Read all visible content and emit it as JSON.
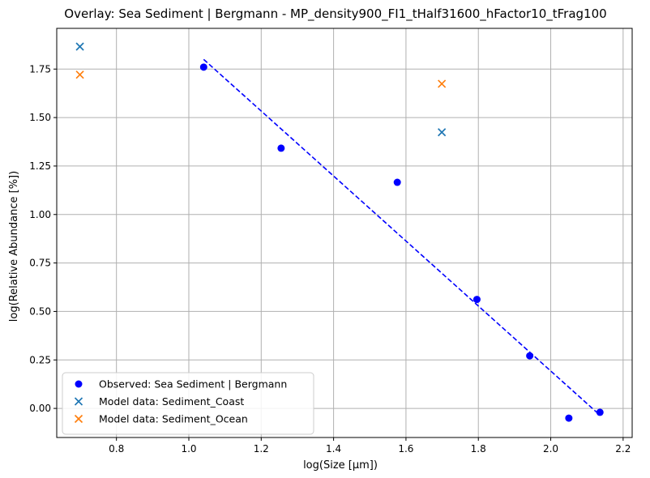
{
  "chart_data": {
    "type": "scatter",
    "title": "Overlay: Sea Sediment | Bergmann - MP_density900_FI1_tHalf31600_hFactor10_tFrag100",
    "xlabel": "log(Size [µm])",
    "ylabel": "log(Relative Abundance [%])",
    "xlim": [
      0.635,
      2.225
    ],
    "ylim": [
      -0.15,
      1.96
    ],
    "xticks": [
      0.8,
      1.0,
      1.2,
      1.4,
      1.6,
      1.8,
      2.0,
      2.2
    ],
    "yticks": [
      0.0,
      0.25,
      0.5,
      0.75,
      1.0,
      1.25,
      1.5,
      1.75
    ],
    "xtick_labels": [
      "0.8",
      "1.0",
      "1.2",
      "1.4",
      "1.6",
      "1.8",
      "2.0",
      "2.2"
    ],
    "ytick_labels": [
      "0.00",
      "0.25",
      "0.50",
      "0.75",
      "1.00",
      "1.25",
      "1.50",
      "1.75"
    ],
    "grid": true,
    "legend_position": "lower-left",
    "series": [
      {
        "name": "Observed: Sea Sediment | Bergmann",
        "marker": "circle",
        "color": "#0000ff",
        "x": [
          1.041,
          1.255,
          1.576,
          1.796,
          1.942,
          2.05,
          2.136
        ],
        "y": [
          1.76,
          1.342,
          1.166,
          0.562,
          0.271,
          -0.05,
          -0.02
        ]
      },
      {
        "name": "Model data: Sediment_Coast",
        "marker": "x",
        "color": "#1f77b4",
        "x": [
          0.699,
          1.699
        ],
        "y": [
          1.866,
          1.424
        ]
      },
      {
        "name": "Model data: Sediment_Ocean",
        "marker": "x",
        "color": "#ff7f0e",
        "x": [
          0.699,
          1.699
        ],
        "y": [
          1.721,
          1.674
        ]
      }
    ],
    "fit_line": {
      "color": "#0000ff",
      "style": "dashed",
      "x": [
        1.041,
        2.136
      ],
      "y": [
        1.8,
        -0.035
      ]
    }
  }
}
